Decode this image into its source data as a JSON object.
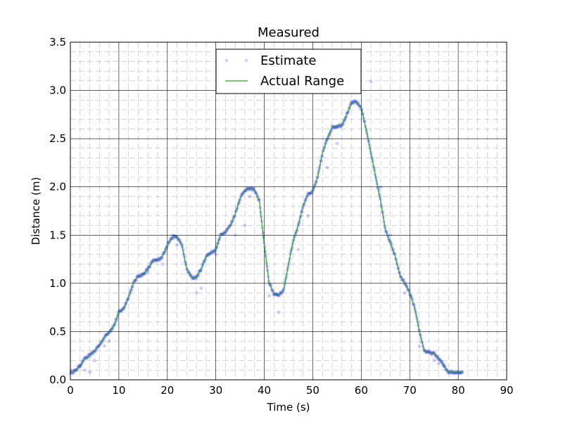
{
  "chart_data": {
    "type": "line+scatter",
    "title": "Measured",
    "xlabel": "Time (s)",
    "ylabel": "Distance (m)",
    "xlim": [
      0,
      90
    ],
    "ylim": [
      0.0,
      3.5
    ],
    "x_ticks": [
      0,
      10,
      20,
      30,
      40,
      50,
      60,
      70,
      80,
      90
    ],
    "y_ticks": [
      0.0,
      0.5,
      1.0,
      1.5,
      2.0,
      2.5,
      3.0,
      3.5
    ],
    "x_tick_labels": [
      "0",
      "10",
      "20",
      "30",
      "40",
      "50",
      "60",
      "70",
      "80",
      "90"
    ],
    "y_tick_labels": [
      "0.0",
      "0.5",
      "1.0",
      "1.5",
      "2.0",
      "2.5",
      "3.0",
      "3.5"
    ],
    "grid": true,
    "legend_position": "top-center",
    "series": [
      {
        "name": "Actual Range",
        "kind": "line",
        "color": "#2ca02c",
        "x": [
          0,
          1,
          2,
          3,
          4,
          5,
          6,
          7,
          8,
          9,
          10,
          11,
          12,
          13,
          14,
          15,
          16,
          17,
          18,
          19,
          20,
          21,
          22,
          23,
          24,
          25,
          26,
          27,
          28,
          29,
          30,
          31,
          32,
          33,
          34,
          35,
          36,
          37,
          38,
          39,
          40,
          41,
          42,
          43,
          44,
          45,
          46,
          47,
          48,
          49,
          50,
          51,
          52,
          53,
          54,
          55,
          56,
          57,
          58,
          59,
          60,
          61,
          62,
          63,
          64,
          65,
          66,
          67,
          68,
          69,
          70,
          71,
          72,
          73,
          74,
          75,
          76,
          77,
          78,
          79,
          80,
          81
        ],
        "values": [
          0.08,
          0.09,
          0.15,
          0.22,
          0.25,
          0.3,
          0.36,
          0.44,
          0.5,
          0.56,
          0.7,
          0.74,
          0.86,
          1.0,
          1.08,
          1.09,
          1.15,
          1.23,
          1.24,
          1.28,
          1.4,
          1.48,
          1.48,
          1.4,
          1.15,
          1.06,
          1.06,
          1.15,
          1.28,
          1.32,
          1.35,
          1.5,
          1.54,
          1.6,
          1.72,
          1.88,
          1.97,
          1.98,
          1.97,
          1.85,
          1.4,
          1.0,
          0.89,
          0.88,
          0.93,
          1.2,
          1.45,
          1.6,
          1.8,
          1.93,
          1.95,
          2.1,
          2.35,
          2.5,
          2.62,
          2.63,
          2.64,
          2.75,
          2.87,
          2.88,
          2.82,
          2.6,
          2.35,
          2.1,
          1.85,
          1.55,
          1.42,
          1.28,
          1.08,
          1.0,
          0.9,
          0.75,
          0.5,
          0.3,
          0.28,
          0.27,
          0.22,
          0.15,
          0.08,
          0.08,
          0.08,
          0.08
        ]
      },
      {
        "name": "Estimate",
        "kind": "scatter",
        "color": "#0000ff",
        "outliers": [
          [
            2,
            0.15
          ],
          [
            3,
            0.1
          ],
          [
            4,
            0.08
          ],
          [
            5,
            0.2
          ],
          [
            7,
            0.35
          ],
          [
            8,
            0.4
          ],
          [
            16,
            1.12
          ],
          [
            19,
            1.2
          ],
          [
            22,
            1.4
          ],
          [
            26,
            0.9
          ],
          [
            27,
            0.95
          ],
          [
            30,
            1.3
          ],
          [
            34,
            1.5
          ],
          [
            36,
            1.6
          ],
          [
            37,
            1.9
          ],
          [
            41,
            0.87
          ],
          [
            43,
            0.7
          ],
          [
            47,
            1.35
          ],
          [
            49,
            1.7
          ],
          [
            53,
            2.2
          ],
          [
            55,
            2.45
          ],
          [
            62,
            3.09
          ],
          [
            64,
            2.0
          ],
          [
            66,
            1.5
          ],
          [
            69,
            0.9
          ],
          [
            72,
            0.35
          ],
          [
            75,
            0.2
          ],
          [
            76,
            0.17
          ],
          [
            77,
            0.15
          ]
        ]
      }
    ]
  }
}
